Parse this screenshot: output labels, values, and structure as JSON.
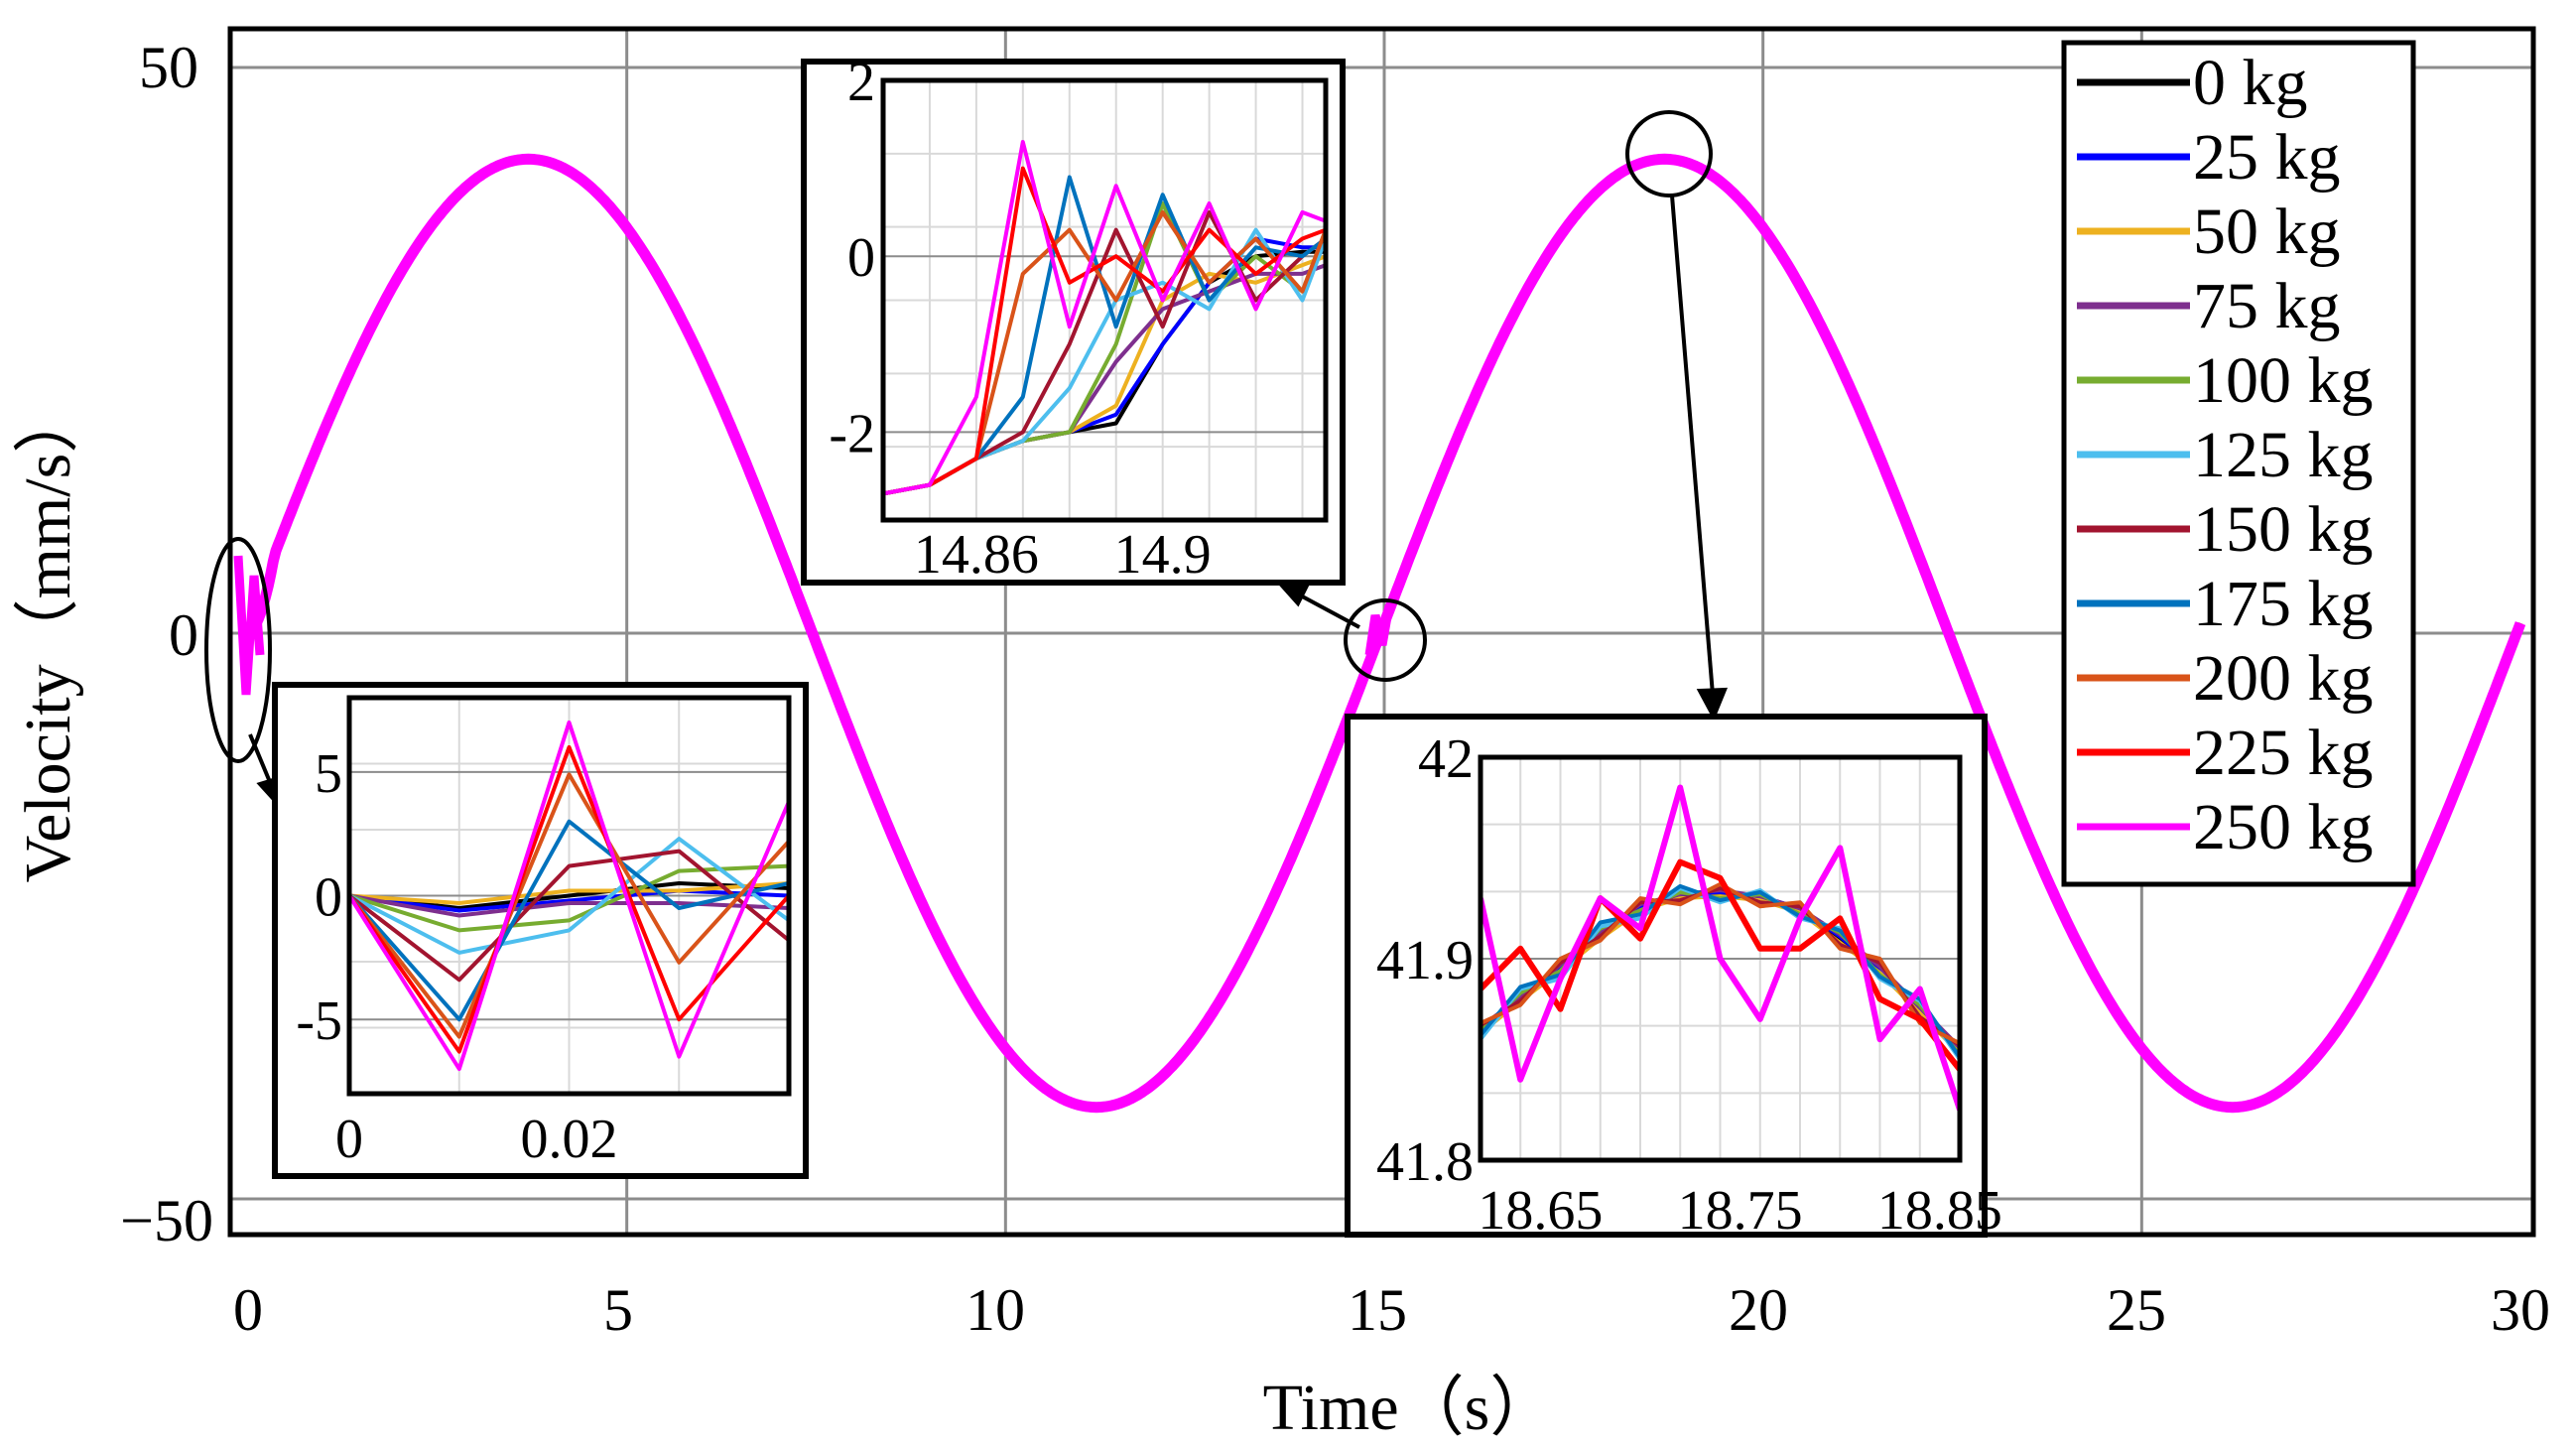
{
  "chart_data": {
    "type": "line",
    "title": "",
    "xlabel": "Time（s）",
    "ylabel": "Velocity（mm/s）",
    "xlim": [
      0,
      30
    ],
    "ylim": [
      -50,
      50
    ],
    "xticks": [
      "0",
      "5",
      "10",
      "15",
      "20",
      "25",
      "30"
    ],
    "yticks": [
      "50",
      "0",
      "−50"
    ],
    "grid": true,
    "legend_position": "top-right",
    "signal": {
      "shape": "sine",
      "amplitude_mm_s": 41.9,
      "period_s": 15,
      "phase_offset_s": -0.05
    },
    "series": [
      {
        "name": "0 kg",
        "color": "#000000"
      },
      {
        "name": "25 kg",
        "color": "#0000ff"
      },
      {
        "name": "50 kg",
        "color": "#edb120"
      },
      {
        "name": "75 kg",
        "color": "#7e2f8e"
      },
      {
        "name": "100 kg",
        "color": "#77ac30"
      },
      {
        "name": "125 kg",
        "color": "#4dbeee"
      },
      {
        "name": "150 kg",
        "color": "#a2142f"
      },
      {
        "name": "175 kg",
        "color": "#0072bd"
      },
      {
        "name": "200 kg",
        "color": "#d95319"
      },
      {
        "name": "225 kg",
        "color": "#ff0000"
      },
      {
        "name": "250 kg",
        "color": "#ff00ff"
      }
    ],
    "insets": [
      {
        "name": "start",
        "xlim": [
          0,
          0.04
        ],
        "ylim": [
          -8,
          8
        ],
        "xticks": [
          {
            "v": 0,
            "label": "0"
          },
          {
            "v": 0.02,
            "label": "0.02"
          }
        ],
        "yticks": [
          {
            "v": 5,
            "label": "5"
          },
          {
            "v": 0,
            "label": "0"
          },
          {
            "v": -5,
            "label": "-5"
          }
        ],
        "x": [
          0,
          0.01,
          0.02,
          0.03,
          0.04
        ],
        "series_values": [
          [
            0,
            -0.5,
            0,
            0.5,
            0.3
          ],
          [
            0,
            -0.6,
            -0.2,
            0.2,
            0
          ],
          [
            0,
            -0.3,
            0.2,
            0.2,
            0.5
          ],
          [
            0,
            -0.8,
            -0.3,
            -0.3,
            -0.5
          ],
          [
            0,
            -1.4,
            -1.0,
            1.0,
            1.2
          ],
          [
            0,
            -2.3,
            -1.4,
            2.3,
            -1.0
          ],
          [
            0,
            -3.4,
            1.2,
            1.8,
            -1.8
          ],
          [
            0,
            -5.0,
            3.0,
            -0.5,
            0.5
          ],
          [
            0,
            -5.7,
            4.9,
            -2.7,
            2.2
          ],
          [
            0,
            -6.3,
            6.0,
            -5.0,
            0
          ],
          [
            0,
            -7.0,
            7.0,
            -6.5,
            3.8
          ]
        ]
      },
      {
        "name": "zero-crossing",
        "xlim": [
          14.84,
          14.935
        ],
        "ylim": [
          -3,
          2
        ],
        "xticks": [
          {
            "v": 14.86,
            "label": "14.86"
          },
          {
            "v": 14.9,
            "label": "14.9"
          }
        ],
        "yticks": [
          {
            "v": 2,
            "label": "2"
          },
          {
            "v": 0,
            "label": "0"
          },
          {
            "v": -2,
            "label": "-2"
          }
        ],
        "x": [
          14.84,
          14.85,
          14.86,
          14.87,
          14.88,
          14.89,
          14.9,
          14.91,
          14.92,
          14.93,
          14.935
        ],
        "series_values": [
          [
            -2.7,
            -2.6,
            -2.3,
            -2.1,
            -2.0,
            -1.9,
            -1.0,
            -0.3,
            0.0,
            0.05,
            0.05
          ],
          [
            -2.7,
            -2.6,
            -2.3,
            -2.1,
            -2.0,
            -1.8,
            -1.0,
            -0.3,
            0.2,
            0.1,
            0.1
          ],
          [
            -2.7,
            -2.6,
            -2.3,
            -2.1,
            -2.0,
            -1.7,
            -0.5,
            -0.2,
            -0.3,
            -0.1,
            0.0
          ],
          [
            -2.7,
            -2.6,
            -2.3,
            -2.1,
            -2.0,
            -1.2,
            -0.6,
            -0.4,
            -0.2,
            -0.2,
            -0.1
          ],
          [
            -2.7,
            -2.6,
            -2.3,
            -2.1,
            -2.0,
            -1.0,
            0.6,
            -0.5,
            0.0,
            -0.4,
            0.3
          ],
          [
            -2.7,
            -2.6,
            -2.3,
            -2.1,
            -1.5,
            -0.5,
            -0.3,
            -0.6,
            0.3,
            -0.5,
            0.2
          ],
          [
            -2.7,
            -2.6,
            -2.3,
            -2.0,
            -1.0,
            0.3,
            -0.8,
            0.5,
            -0.5,
            0.0,
            0.2
          ],
          [
            -2.7,
            -2.6,
            -2.3,
            -1.6,
            0.9,
            -0.8,
            0.7,
            -0.5,
            0.1,
            0.0,
            0.2
          ],
          [
            -2.7,
            -2.6,
            -2.3,
            -0.2,
            0.3,
            -0.5,
            0.5,
            -0.3,
            0.2,
            -0.4,
            0.3
          ],
          [
            -2.7,
            -2.6,
            -2.3,
            1.0,
            -0.3,
            0.0,
            -0.4,
            0.3,
            -0.2,
            0.2,
            0.3
          ],
          [
            -2.7,
            -2.6,
            -1.6,
            1.3,
            -0.8,
            0.8,
            -0.5,
            0.6,
            -0.6,
            0.5,
            0.4
          ]
        ]
      },
      {
        "name": "peak",
        "xlim": [
          18.62,
          18.86
        ],
        "ylim": [
          41.8,
          42.0
        ],
        "xticks": [
          {
            "v": 18.65,
            "label": "18.65"
          },
          {
            "v": 18.75,
            "label": "18.75"
          },
          {
            "v": 18.85,
            "label": "18.85"
          }
        ],
        "yticks": [
          {
            "v": 42,
            "label": "42"
          },
          {
            "v": 41.9,
            "label": "41.9"
          },
          {
            "v": 41.8,
            "label": "41.8"
          }
        ],
        "x": [
          18.62,
          18.64,
          18.66,
          18.68,
          18.7,
          18.72,
          18.74,
          18.76,
          18.78,
          18.8,
          18.82,
          18.84,
          18.86
        ],
        "series_values": [
          [
            41.865,
            41.88,
            41.895,
            41.912,
            41.925,
            41.931,
            41.932,
            41.93,
            41.924,
            41.91,
            41.895,
            41.875,
            41.855
          ],
          [
            41.865,
            41.882,
            41.896,
            41.913,
            41.926,
            41.932,
            41.933,
            41.931,
            41.925,
            41.911,
            41.894,
            41.874,
            41.854
          ],
          [
            41.863,
            41.879,
            41.894,
            41.91,
            41.924,
            41.93,
            41.931,
            41.929,
            41.923,
            41.908,
            41.893,
            41.873,
            41.853
          ],
          [
            41.866,
            41.881,
            41.897,
            41.913,
            41.927,
            41.932,
            41.934,
            41.931,
            41.925,
            41.912,
            41.896,
            41.876,
            41.856
          ],
          [
            41.864,
            41.883,
            41.894,
            41.915,
            41.924,
            41.933,
            41.93,
            41.932,
            41.922,
            41.913,
            41.892,
            41.877,
            41.852
          ],
          [
            41.86,
            41.885,
            41.89,
            41.916,
            41.92,
            41.935,
            41.928,
            41.934,
            41.92,
            41.915,
            41.89,
            41.879,
            41.85
          ],
          [
            41.867,
            41.879,
            41.898,
            41.911,
            41.928,
            41.929,
            41.935,
            41.928,
            41.926,
            41.907,
            41.898,
            41.871,
            41.857
          ],
          [
            41.862,
            41.886,
            41.892,
            41.918,
            41.922,
            41.936,
            41.929,
            41.933,
            41.921,
            41.914,
            41.891,
            41.88,
            41.851
          ],
          [
            41.868,
            41.877,
            41.9,
            41.909,
            41.93,
            41.927,
            41.937,
            41.926,
            41.928,
            41.905,
            41.9,
            41.868,
            41.858
          ],
          [
            41.885,
            41.905,
            41.875,
            41.93,
            41.91,
            41.948,
            41.94,
            41.905,
            41.905,
            41.92,
            41.88,
            41.87,
            41.845
          ],
          [
            41.93,
            41.84,
            41.89,
            41.93,
            41.915,
            41.985,
            41.9,
            41.87,
            41.92,
            41.955,
            41.86,
            41.885,
            41.825
          ]
        ]
      }
    ]
  }
}
